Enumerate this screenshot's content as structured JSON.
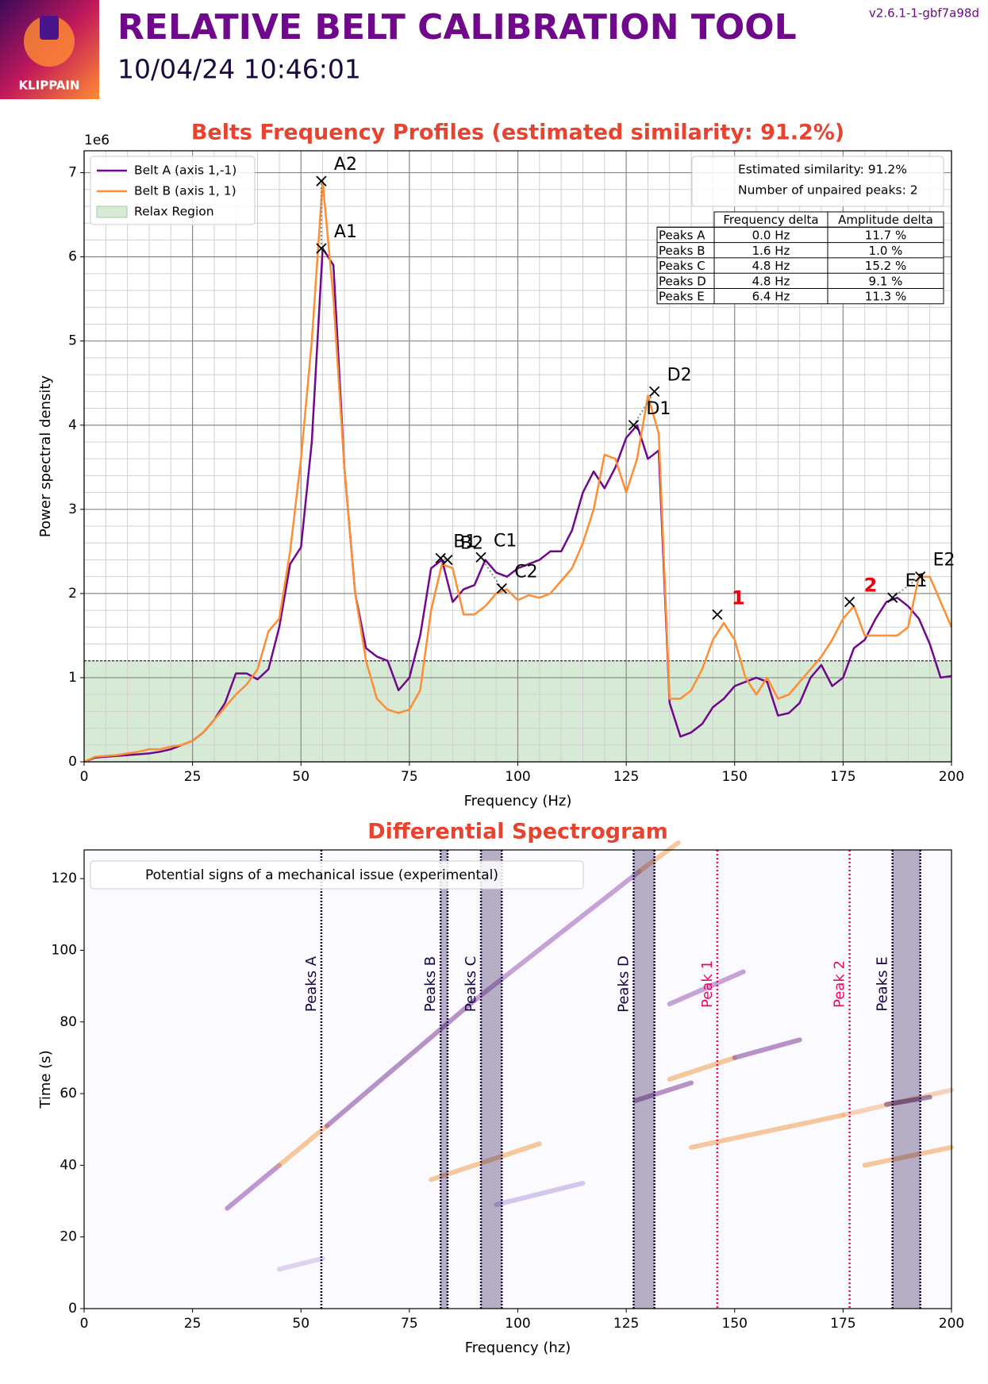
{
  "header": {
    "title": "RELATIVE BELT CALIBRATION TOOL",
    "timestamp": "10/04/24 10:46:01",
    "version": "v2.6.1-1-gbf7a98d",
    "logo_text": "KLIPPAIN"
  },
  "chart_data": [
    {
      "type": "line",
      "title": "Belts Frequency Profiles (estimated similarity: 91.2%)",
      "x_label": "Frequency (Hz)",
      "y_label": "Power spectral density",
      "y_offset_label": "1e6",
      "xlim": [
        0,
        200
      ],
      "ylim": [
        0,
        7.26
      ],
      "xticks": [
        0,
        25,
        50,
        75,
        100,
        125,
        150,
        175,
        200
      ],
      "yticks": [
        0,
        1,
        2,
        3,
        4,
        5,
        6,
        7
      ],
      "grid": true,
      "x": [
        0,
        2.5,
        5,
        7.5,
        10,
        12.5,
        15,
        17.5,
        20,
        22.5,
        25,
        27.5,
        30,
        32.5,
        35,
        37.5,
        40,
        42.5,
        45,
        47.5,
        50,
        52.5,
        55,
        57.5,
        60,
        62.5,
        65,
        67.5,
        70,
        72.5,
        75,
        77.5,
        80,
        82.5,
        85,
        87.5,
        90,
        92.5,
        95,
        97.5,
        100,
        102.5,
        105,
        107.5,
        110,
        112.5,
        115,
        117.5,
        120,
        122.5,
        125,
        127.5,
        130,
        132.5,
        135,
        137.5,
        140,
        142.5,
        145,
        147.5,
        150,
        152.5,
        155,
        157.5,
        160,
        162.5,
        165,
        167.5,
        170,
        172.5,
        175,
        177.5,
        180,
        182.5,
        185,
        187.5,
        190,
        192.5,
        195,
        197.5,
        200
      ],
      "series": [
        {
          "name": "Belt A (axis 1,-1)",
          "color": "#70088c",
          "values": [
            0,
            0.05,
            0.06,
            0.07,
            0.08,
            0.09,
            0.1,
            0.12,
            0.15,
            0.2,
            0.25,
            0.35,
            0.5,
            0.7,
            1.05,
            1.05,
            0.98,
            1.1,
            1.6,
            2.35,
            2.55,
            3.8,
            6.1,
            5.9,
            3.5,
            2.0,
            1.35,
            1.25,
            1.2,
            0.85,
            1.0,
            1.5,
            2.3,
            2.4,
            1.9,
            2.05,
            2.1,
            2.4,
            2.25,
            2.2,
            2.3,
            2.35,
            2.4,
            2.5,
            2.5,
            2.75,
            3.2,
            3.45,
            3.25,
            3.5,
            3.85,
            4.0,
            3.6,
            3.7,
            0.7,
            0.3,
            0.35,
            0.45,
            0.65,
            0.75,
            0.9,
            0.95,
            1.0,
            0.95,
            0.55,
            0.58,
            0.7,
            1.0,
            1.15,
            0.9,
            1.0,
            1.35,
            1.45,
            1.7,
            1.9,
            1.95,
            1.85,
            1.7,
            1.4,
            1.0,
            1.02
          ]
        },
        {
          "name": "Belt B (axis 1, 1)",
          "color": "#ff8d32",
          "values": [
            0,
            0.06,
            0.07,
            0.08,
            0.1,
            0.12,
            0.15,
            0.15,
            0.18,
            0.2,
            0.25,
            0.35,
            0.5,
            0.65,
            0.8,
            0.92,
            1.1,
            1.55,
            1.7,
            2.5,
            3.6,
            5.0,
            6.9,
            5.5,
            3.5,
            2.0,
            1.2,
            0.75,
            0.62,
            0.58,
            0.62,
            0.85,
            1.8,
            2.35,
            2.3,
            1.75,
            1.75,
            1.85,
            2.0,
            2.05,
            1.92,
            1.98,
            1.95,
            2.0,
            2.15,
            2.3,
            2.6,
            3.0,
            3.65,
            3.6,
            3.2,
            3.6,
            4.35,
            3.9,
            0.75,
            0.75,
            0.85,
            1.1,
            1.45,
            1.65,
            1.45,
            1.0,
            0.8,
            1.0,
            0.75,
            0.8,
            0.95,
            1.1,
            1.25,
            1.45,
            1.7,
            1.85,
            1.5,
            1.5,
            1.5,
            1.5,
            1.6,
            2.2,
            2.2,
            1.9,
            1.6
          ]
        }
      ],
      "relax_region": {
        "name": "Relax Region",
        "threshold": 1.2,
        "color": "#d6ead5"
      },
      "peaks": [
        {
          "label": "A1",
          "x": 54.7,
          "y": 6.1
        },
        {
          "label": "A2",
          "x": 54.7,
          "y": 6.9
        },
        {
          "label": "B1",
          "x": 82.2,
          "y": 2.42
        },
        {
          "label": "B2",
          "x": 83.8,
          "y": 2.4
        },
        {
          "label": "C1",
          "x": 91.5,
          "y": 2.43
        },
        {
          "label": "C2",
          "x": 96.3,
          "y": 2.06
        },
        {
          "label": "D1",
          "x": 126.7,
          "y": 4.0
        },
        {
          "label": "D2",
          "x": 131.5,
          "y": 4.4
        },
        {
          "label": "E1",
          "x": 186.4,
          "y": 1.95
        },
        {
          "label": "E2",
          "x": 192.8,
          "y": 2.2
        }
      ],
      "unpaired_peaks": [
        {
          "label": "1",
          "x": 146,
          "y": 1.75
        },
        {
          "label": "2",
          "x": 176.5,
          "y": 1.9
        }
      ],
      "info_box": [
        "Estimated similarity: 91.2%",
        "Number of unpaired peaks: 2"
      ],
      "table": {
        "columns": [
          "Frequency delta",
          "Amplitude delta"
        ],
        "rows": [
          [
            "Peaks A",
            "0.0 Hz",
            "11.7 %"
          ],
          [
            "Peaks B",
            "1.6 Hz",
            "1.0 %"
          ],
          [
            "Peaks C",
            "4.8 Hz",
            "15.2 %"
          ],
          [
            "Peaks D",
            "4.8 Hz",
            "9.1 %"
          ],
          [
            "Peaks E",
            "6.4 Hz",
            "11.3 %"
          ]
        ]
      }
    },
    {
      "type": "spectrogram",
      "title": "Differential Spectrogram",
      "x_label": "Frequency (hz)",
      "y_label": "Time (s)",
      "xlim": [
        0,
        200
      ],
      "ylim": [
        0,
        128
      ],
      "xticks": [
        0,
        25,
        50,
        75,
        100,
        125,
        150,
        175,
        200
      ],
      "yticks": [
        0,
        20,
        40,
        60,
        80,
        100,
        120
      ],
      "legend": "Potential signs of a mechanical issue (experimental)",
      "peak_color": "#150140",
      "unpaired_color": "#ea0664",
      "peaks": [
        {
          "label": "Peaks A",
          "x0": 54.7,
          "x1": 54.7
        },
        {
          "label": "Peaks B",
          "x0": 82.2,
          "x1": 83.8
        },
        {
          "label": "Peaks C",
          "x0": 91.5,
          "x1": 96.3
        },
        {
          "label": "Peaks D",
          "x0": 126.7,
          "x1": 131.5
        },
        {
          "label": "Peaks E",
          "x0": 186.4,
          "x1": 192.8
        }
      ],
      "unpaired_peaks": [
        {
          "label": "Peak 1",
          "x": 146
        },
        {
          "label": "Peak 2",
          "x": 176.5
        }
      ],
      "streaks": [
        {
          "x0": 33,
          "y0": 28,
          "x1": 45,
          "y1": 40,
          "color": "#8e44ad"
        },
        {
          "x0": 45,
          "y0": 40,
          "x1": 56,
          "y1": 51,
          "color": "#f39c4a"
        },
        {
          "x0": 56,
          "y0": 51,
          "x1": 90,
          "y1": 86,
          "color": "#7d3c98"
        },
        {
          "x0": 90,
          "y0": 86,
          "x1": 128,
          "y1": 122,
          "color": "#9b59b6"
        },
        {
          "x0": 128,
          "y0": 122,
          "x1": 137,
          "y1": 130,
          "color": "#f39c4a"
        },
        {
          "x0": 80,
          "y0": 36,
          "x1": 105,
          "y1": 46,
          "color": "#f39c4a"
        },
        {
          "x0": 95,
          "y0": 29,
          "x1": 115,
          "y1": 35,
          "color": "#b39ddb"
        },
        {
          "x0": 127,
          "y0": 58,
          "x1": 140,
          "y1": 63,
          "color": "#7d3c98"
        },
        {
          "x0": 135,
          "y0": 64,
          "x1": 150,
          "y1": 70,
          "color": "#f39c4a"
        },
        {
          "x0": 150,
          "y0": 70,
          "x1": 165,
          "y1": 75,
          "color": "#7d3c98"
        },
        {
          "x0": 140,
          "y0": 45,
          "x1": 175,
          "y1": 54,
          "color": "#f39c4a"
        },
        {
          "x0": 175,
          "y0": 54,
          "x1": 200,
          "y1": 61,
          "color": "#f5b07a"
        },
        {
          "x0": 185,
          "y0": 57,
          "x1": 195,
          "y1": 59,
          "color": "#5b2c6f"
        },
        {
          "x0": 180,
          "y0": 40,
          "x1": 200,
          "y1": 45,
          "color": "#f39c4a"
        },
        {
          "x0": 135,
          "y0": 85,
          "x1": 152,
          "y1": 94,
          "color": "#9b59b6"
        },
        {
          "x0": 45,
          "y0": 11,
          "x1": 55,
          "y1": 14,
          "color": "#c7b3e0"
        }
      ]
    }
  ]
}
